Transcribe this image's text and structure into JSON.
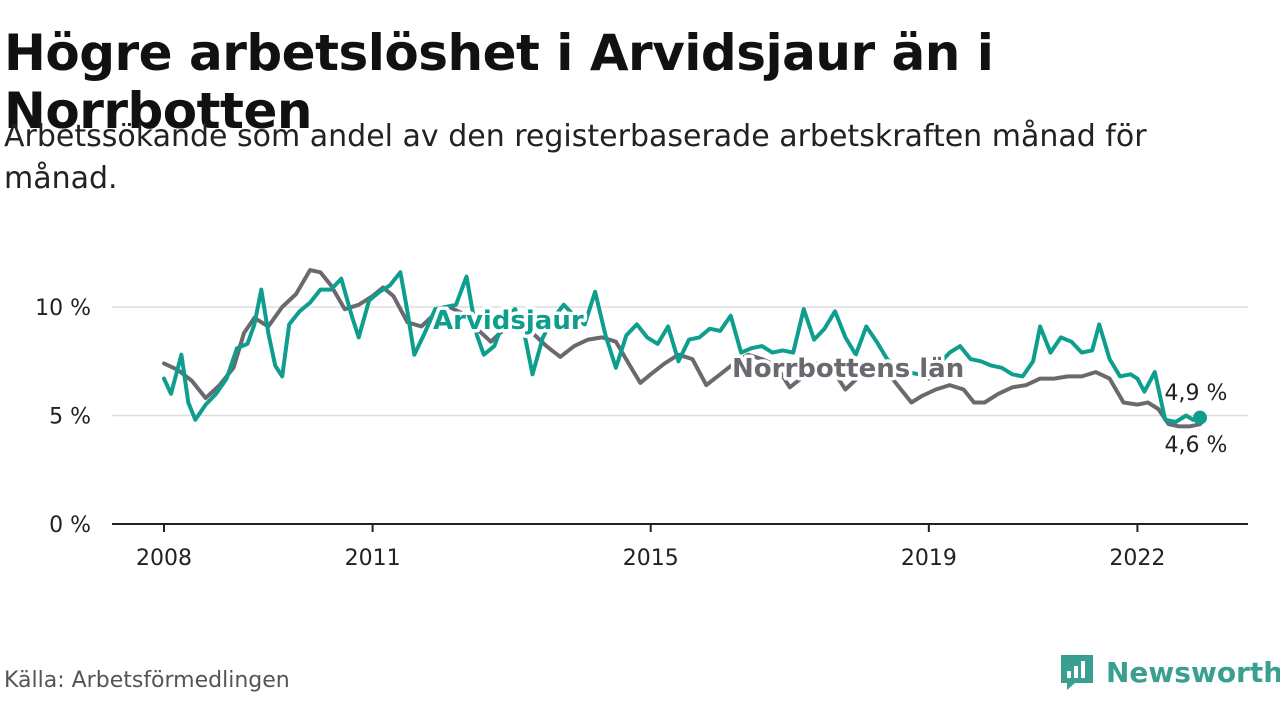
{
  "title": "Högre arbetslöshet i Arvidsjaur än i Norrbotten",
  "subtitle": "Arbetssökande som andel av den registerbaserade arbetskraften månad för månad.",
  "footer": {
    "source": "Källa: Arbetsförmedlingen",
    "brand": "Newsworthy",
    "brand_icon": "newsworthy-logo-icon"
  },
  "colors": {
    "arvidsjaur": "#0e9e8e",
    "norrbotten": "#6b6870",
    "grid": "#dddddd",
    "axis": "#222222",
    "brand": "#3a9e90"
  },
  "chart_data": {
    "type": "line",
    "title": "Högre arbetslöshet i Arvidsjaur än i Norrbotten",
    "xlabel": "",
    "ylabel": "",
    "xlim": [
      2008.0,
      2022.9
    ],
    "ylim": [
      0,
      10
    ],
    "grid": true,
    "y_ticks": [
      {
        "value": 0,
        "label": "0 %"
      },
      {
        "value": 5,
        "label": "5 %"
      },
      {
        "value": 10,
        "label": "10 %"
      }
    ],
    "x_ticks": [
      {
        "value": 2008,
        "label": "2008"
      },
      {
        "value": 2011,
        "label": "2011"
      },
      {
        "value": 2015,
        "label": "2015"
      },
      {
        "value": 2019,
        "label": "2019"
      },
      {
        "value": 2022,
        "label": "2022"
      }
    ],
    "series": [
      {
        "name": "Norrbottens län",
        "label": "Norrbottens län",
        "color": "#6b6870",
        "end_label": "4,6 %",
        "points": [
          [
            2008.0,
            7.4
          ],
          [
            2008.2,
            7.1
          ],
          [
            2008.4,
            6.6
          ],
          [
            2008.6,
            5.8
          ],
          [
            2008.8,
            6.4
          ],
          [
            2009.0,
            7.2
          ],
          [
            2009.15,
            8.8
          ],
          [
            2009.3,
            9.5
          ],
          [
            2009.5,
            9.1
          ],
          [
            2009.7,
            10.0
          ],
          [
            2009.9,
            10.6
          ],
          [
            2010.1,
            11.7
          ],
          [
            2010.25,
            11.6
          ],
          [
            2010.4,
            11.0
          ],
          [
            2010.6,
            9.9
          ],
          [
            2010.8,
            10.1
          ],
          [
            2011.0,
            10.5
          ],
          [
            2011.15,
            10.9
          ],
          [
            2011.3,
            10.5
          ],
          [
            2011.5,
            9.3
          ],
          [
            2011.7,
            9.1
          ],
          [
            2011.9,
            9.7
          ],
          [
            2012.1,
            10.0
          ],
          [
            2012.3,
            9.7
          ],
          [
            2012.5,
            9.0
          ],
          [
            2012.7,
            8.4
          ],
          [
            2012.9,
            9.0
          ],
          [
            2013.1,
            9.3
          ],
          [
            2013.3,
            8.8
          ],
          [
            2013.5,
            8.2
          ],
          [
            2013.7,
            7.7
          ],
          [
            2013.9,
            8.2
          ],
          [
            2014.1,
            8.5
          ],
          [
            2014.3,
            8.6
          ],
          [
            2014.5,
            8.4
          ],
          [
            2014.7,
            7.3
          ],
          [
            2014.85,
            6.5
          ],
          [
            2015.0,
            6.9
          ],
          [
            2015.2,
            7.4
          ],
          [
            2015.4,
            7.8
          ],
          [
            2015.6,
            7.6
          ],
          [
            2015.8,
            6.4
          ],
          [
            2016.0,
            6.9
          ],
          [
            2016.2,
            7.4
          ],
          [
            2016.4,
            7.8
          ],
          [
            2016.6,
            7.6
          ],
          [
            2016.8,
            7.3
          ],
          [
            2017.0,
            6.3
          ],
          [
            2017.2,
            6.8
          ],
          [
            2017.4,
            7.4
          ],
          [
            2017.6,
            7.2
          ],
          [
            2017.8,
            6.2
          ],
          [
            2018.0,
            6.8
          ],
          [
            2018.2,
            7.1
          ],
          [
            2018.4,
            7.0
          ],
          [
            2018.6,
            6.2
          ],
          [
            2018.75,
            5.6
          ],
          [
            2018.9,
            5.9
          ],
          [
            2019.1,
            6.2
          ],
          [
            2019.3,
            6.4
          ],
          [
            2019.5,
            6.2
          ],
          [
            2019.65,
            5.6
          ],
          [
            2019.8,
            5.6
          ],
          [
            2020.0,
            6.0
          ],
          [
            2020.2,
            6.3
          ],
          [
            2020.4,
            6.4
          ],
          [
            2020.6,
            6.7
          ],
          [
            2020.8,
            6.7
          ],
          [
            2021.0,
            6.8
          ],
          [
            2021.2,
            6.8
          ],
          [
            2021.4,
            7.0
          ],
          [
            2021.6,
            6.7
          ],
          [
            2021.8,
            5.6
          ],
          [
            2022.0,
            5.5
          ],
          [
            2022.15,
            5.6
          ],
          [
            2022.3,
            5.3
          ],
          [
            2022.45,
            4.6
          ],
          [
            2022.6,
            4.5
          ],
          [
            2022.75,
            4.5
          ],
          [
            2022.9,
            4.6
          ]
        ]
      },
      {
        "name": "Arvidsjaur",
        "label": "Arvidsjaur",
        "color": "#0e9e8e",
        "end_label": "4,9 %",
        "points": [
          [
            2008.0,
            6.7
          ],
          [
            2008.1,
            6.0
          ],
          [
            2008.25,
            7.8
          ],
          [
            2008.35,
            5.6
          ],
          [
            2008.45,
            4.8
          ],
          [
            2008.6,
            5.5
          ],
          [
            2008.75,
            6.0
          ],
          [
            2008.9,
            6.7
          ],
          [
            2009.05,
            8.1
          ],
          [
            2009.2,
            8.3
          ],
          [
            2009.3,
            9.2
          ],
          [
            2009.4,
            10.8
          ],
          [
            2009.5,
            8.8
          ],
          [
            2009.6,
            7.3
          ],
          [
            2009.7,
            6.8
          ],
          [
            2009.8,
            9.2
          ],
          [
            2009.95,
            9.8
          ],
          [
            2010.1,
            10.2
          ],
          [
            2010.25,
            10.8
          ],
          [
            2010.4,
            10.8
          ],
          [
            2010.55,
            11.3
          ],
          [
            2010.7,
            9.6
          ],
          [
            2010.8,
            8.6
          ],
          [
            2010.95,
            10.3
          ],
          [
            2011.1,
            10.7
          ],
          [
            2011.25,
            11.0
          ],
          [
            2011.4,
            11.6
          ],
          [
            2011.5,
            9.8
          ],
          [
            2011.6,
            7.8
          ],
          [
            2011.75,
            8.8
          ],
          [
            2011.9,
            9.9
          ],
          [
            2012.05,
            10.0
          ],
          [
            2012.2,
            10.1
          ],
          [
            2012.35,
            11.4
          ],
          [
            2012.5,
            8.7
          ],
          [
            2012.6,
            7.8
          ],
          [
            2012.75,
            8.2
          ],
          [
            2012.9,
            9.5
          ],
          [
            2013.05,
            9.9
          ],
          [
            2013.2,
            8.5
          ],
          [
            2013.3,
            6.9
          ],
          [
            2013.45,
            8.6
          ],
          [
            2013.6,
            9.5
          ],
          [
            2013.75,
            10.1
          ],
          [
            2013.9,
            9.6
          ],
          [
            2014.05,
            9.2
          ],
          [
            2014.2,
            10.7
          ],
          [
            2014.35,
            8.7
          ],
          [
            2014.5,
            7.2
          ],
          [
            2014.65,
            8.7
          ],
          [
            2014.8,
            9.2
          ],
          [
            2014.95,
            8.6
          ],
          [
            2015.1,
            8.3
          ],
          [
            2015.25,
            9.1
          ],
          [
            2015.4,
            7.5
          ],
          [
            2015.55,
            8.5
          ],
          [
            2015.7,
            8.6
          ],
          [
            2015.85,
            9.0
          ],
          [
            2016.0,
            8.9
          ],
          [
            2016.15,
            9.6
          ],
          [
            2016.3,
            7.9
          ],
          [
            2016.45,
            8.1
          ],
          [
            2016.6,
            8.2
          ],
          [
            2016.75,
            7.9
          ],
          [
            2016.9,
            8.0
          ],
          [
            2017.05,
            7.9
          ],
          [
            2017.2,
            9.9
          ],
          [
            2017.35,
            8.5
          ],
          [
            2017.5,
            9.0
          ],
          [
            2017.65,
            9.8
          ],
          [
            2017.8,
            8.6
          ],
          [
            2017.95,
            7.8
          ],
          [
            2018.1,
            9.1
          ],
          [
            2018.25,
            8.4
          ],
          [
            2018.4,
            7.6
          ],
          [
            2018.55,
            7.2
          ],
          [
            2018.7,
            7.0
          ],
          [
            2018.85,
            6.9
          ],
          [
            2019.0,
            6.7
          ],
          [
            2019.15,
            7.4
          ],
          [
            2019.3,
            7.9
          ],
          [
            2019.45,
            8.2
          ],
          [
            2019.6,
            7.6
          ],
          [
            2019.75,
            7.5
          ],
          [
            2019.9,
            7.3
          ],
          [
            2020.05,
            7.2
          ],
          [
            2020.2,
            6.9
          ],
          [
            2020.35,
            6.8
          ],
          [
            2020.5,
            7.5
          ],
          [
            2020.6,
            9.1
          ],
          [
            2020.75,
            7.9
          ],
          [
            2020.9,
            8.6
          ],
          [
            2021.05,
            8.4
          ],
          [
            2021.2,
            7.9
          ],
          [
            2021.35,
            8.0
          ],
          [
            2021.45,
            9.2
          ],
          [
            2021.6,
            7.6
          ],
          [
            2021.75,
            6.8
          ],
          [
            2021.9,
            6.9
          ],
          [
            2022.0,
            6.7
          ],
          [
            2022.1,
            6.1
          ],
          [
            2022.25,
            7.0
          ],
          [
            2022.4,
            4.8
          ],
          [
            2022.55,
            4.7
          ],
          [
            2022.7,
            5.0
          ],
          [
            2022.8,
            4.8
          ],
          [
            2022.9,
            4.9
          ]
        ]
      }
    ]
  }
}
